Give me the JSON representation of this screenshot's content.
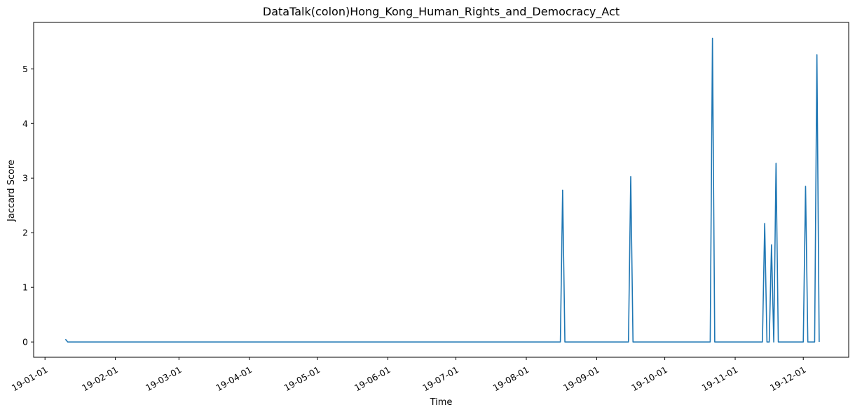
{
  "chart_data": {
    "type": "line",
    "title": "DataTalk(colon)Hong_Kong_Human_Rights_and_Democracy_Act",
    "xlabel": "Time",
    "ylabel": "Jaccard Score",
    "xlim": [
      "2018-12-27",
      "2019-12-21"
    ],
    "ylim": [
      -0.28,
      5.85
    ],
    "x_ticks": [
      "2019-01-01",
      "2019-02-01",
      "2019-03-01",
      "2019-04-01",
      "2019-05-01",
      "2019-06-01",
      "2019-07-01",
      "2019-08-01",
      "2019-09-01",
      "2019-10-01",
      "2019-11-01",
      "2019-12-01"
    ],
    "x_tick_labels": [
      "19-01-01",
      "19-02-01",
      "19-03-01",
      "19-04-01",
      "19-05-01",
      "19-06-01",
      "19-07-01",
      "19-08-01",
      "19-09-01",
      "19-10-01",
      "19-11-01",
      "19-12-01"
    ],
    "y_ticks": [
      0,
      1,
      2,
      3,
      4,
      5
    ],
    "y_tick_labels": [
      "0",
      "1",
      "2",
      "3",
      "4",
      "5"
    ],
    "grid": false,
    "color": "#1f77b4",
    "series": [
      {
        "x": [
          "2019-01-10",
          "2019-01-11",
          "2019-08-16",
          "2019-08-17",
          "2019-08-18",
          "2019-09-15",
          "2019-09-16",
          "2019-09-17",
          "2019-10-21",
          "2019-10-22",
          "2019-10-23",
          "2019-11-13",
          "2019-11-14",
          "2019-11-15",
          "2019-11-16",
          "2019-11-17",
          "2019-11-18",
          "2019-11-19",
          "2019-11-20",
          "2019-12-01",
          "2019-12-02",
          "2019-12-03",
          "2019-12-06",
          "2019-12-07",
          "2019-12-08"
        ],
        "y": [
          0.05,
          0,
          0,
          2.78,
          0,
          0,
          3.03,
          0,
          0,
          5.56,
          0,
          0,
          2.17,
          0,
          0,
          1.78,
          0,
          3.27,
          0,
          0,
          2.85,
          0,
          0,
          5.26,
          0
        ]
      }
    ]
  }
}
